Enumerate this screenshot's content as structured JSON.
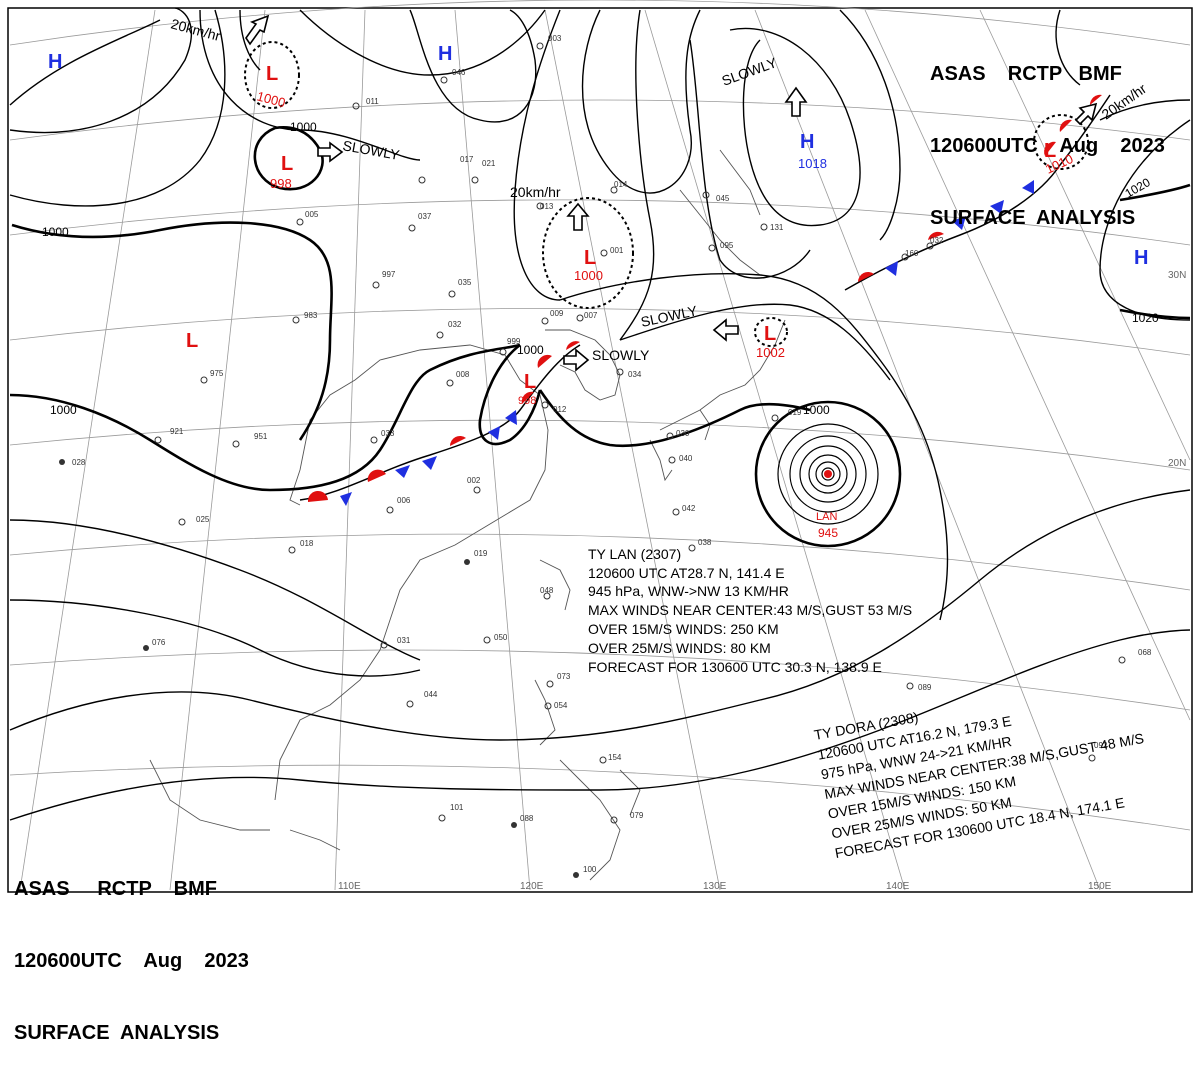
{
  "header_top": {
    "line1": "ASAS    RCTP   BMF",
    "line2": "120600UTC    Aug    2023",
    "line3": "SURFACE  ANALYSIS"
  },
  "header_bottom": {
    "line1": "ASAS     RCTP    BMF",
    "line2": "120600UTC    Aug    2023",
    "line3": "SURFACE  ANALYSIS"
  },
  "colors": {
    "high": "#1f2fe0",
    "low": "#e01010",
    "warm_front": "#e01010",
    "cold_front": "#1f2fe0",
    "isobar": "#000000",
    "grid": "#999999"
  },
  "lon_labels": [
    "110E",
    "120E",
    "130E",
    "140E",
    "150E"
  ],
  "lat_labels": [
    "30N",
    "20N"
  ],
  "pressure_systems": [
    {
      "type": "H",
      "pressure": ""
    },
    {
      "type": "H",
      "pressure": ""
    },
    {
      "type": "H",
      "pressure": "1018"
    },
    {
      "type": "H",
      "pressure": ""
    },
    {
      "type": "L",
      "pressure": "1000"
    },
    {
      "type": "L",
      "pressure": "998"
    },
    {
      "type": "L",
      "pressure": ""
    },
    {
      "type": "L",
      "pressure": "1000"
    },
    {
      "type": "L",
      "pressure": "998"
    },
    {
      "type": "L",
      "pressure": "1002"
    },
    {
      "type": "L",
      "pressure": "1010"
    }
  ],
  "isobar_labels": [
    "1000",
    "1000",
    "1000",
    "1000",
    "1000",
    "1020",
    "1020"
  ],
  "motions": [
    "20km/hr",
    "SLOWLY",
    "20km/hr",
    "SLOWLY",
    "SLOWLY",
    "SLOWLY",
    "20km/hr"
  ],
  "typhoon_center": {
    "name": "LAN",
    "pressure": "945"
  },
  "typhoon_lan": {
    "line1": "TY  LAN  (2307)",
    "line2": "120600 UTC  AT28.7 N, 141.4 E",
    "line3": "945 hPa, WNW->NW  13 KM/HR",
    "line4": "MAX WINDS NEAR CENTER:43 M/S,GUST 53 M/S",
    "line5": "OVER 15M/S WINDS: 250 KM",
    "line6": "OVER 25M/S WINDS:  80 KM",
    "line7": "FORECAST FOR 130600 UTC 30.3 N, 138.9 E"
  },
  "typhoon_dora": {
    "line1": "TY  DORA  (2308)",
    "line2": "120600 UTC  AT16.2 N, 179.3 E",
    "line3": "975 hPa, WNW  24->21 KM/HR",
    "line4": "MAX WINDS NEAR CENTER:38 M/S,GUST 48 M/S",
    "line5": "OVER 15M/S WINDS: 150 KM",
    "line6": "OVER 25M/S WINDS: 50 KM",
    "line7": "FORECAST FOR 130600 UTC 18.4 N, 174.1 E"
  },
  "stations": [
    "021",
    "017",
    "005",
    "037",
    "997",
    "035",
    "032",
    "008",
    "033",
    "006",
    "002",
    "019",
    "025",
    "018",
    "031",
    "044",
    "076",
    "101",
    "088",
    "079",
    "100",
    "054",
    "073",
    "048",
    "050",
    "034",
    "030",
    "040",
    "042",
    "038",
    "001",
    "013",
    "011",
    "014",
    "046",
    "003",
    "983",
    "975",
    "921",
    "951",
    "028",
    "999",
    "012",
    "009",
    "007",
    "019",
    "045",
    "095",
    "131",
    "032",
    "160",
    "154",
    "068",
    "092",
    "089",
    "073"
  ]
}
